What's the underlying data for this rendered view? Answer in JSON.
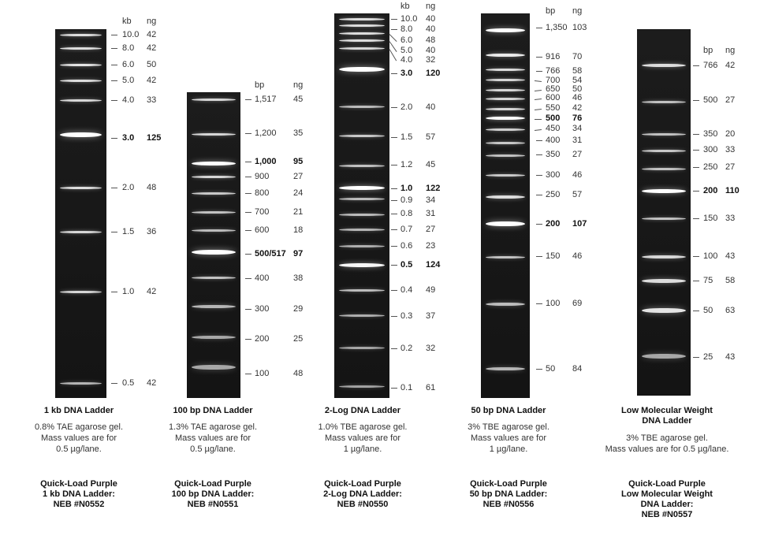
{
  "panels": [
    {
      "id": "1kb",
      "col_headers": [
        "kb",
        "ng"
      ],
      "title": "1 kb DNA Ladder",
      "description": [
        "0.8% TAE agarose gel.",
        "Mass values are for",
        "0.5 µg/lane."
      ],
      "quickload": [
        "Quick-Load Purple",
        "1 kb DNA Ladder:",
        "NEB #N0552"
      ],
      "bands": [
        {
          "size": "10.0",
          "ng": "42",
          "bold": false
        },
        {
          "size": "8.0",
          "ng": "42",
          "bold": false
        },
        {
          "size": "6.0",
          "ng": "50",
          "bold": false
        },
        {
          "size": "5.0",
          "ng": "42",
          "bold": false
        },
        {
          "size": "4.0",
          "ng": "33",
          "bold": false
        },
        {
          "size": "3.0",
          "ng": "125",
          "bold": true
        },
        {
          "size": "2.0",
          "ng": "48",
          "bold": false
        },
        {
          "size": "1.5",
          "ng": "36",
          "bold": false
        },
        {
          "size": "1.0",
          "ng": "42",
          "bold": false
        },
        {
          "size": "0.5",
          "ng": "42",
          "bold": false
        }
      ]
    },
    {
      "id": "100bp",
      "col_headers": [
        "bp",
        "ng"
      ],
      "title": "100 bp DNA Ladder",
      "description": [
        "1.3% TAE agarose gel.",
        "Mass values are for",
        "0.5 µg/lane."
      ],
      "quickload": [
        "Quick-Load Purple",
        "100 bp DNA Ladder:",
        "NEB #N0551"
      ],
      "bands": [
        {
          "size": "1,517",
          "ng": "45",
          "bold": false
        },
        {
          "size": "1,200",
          "ng": "35",
          "bold": false
        },
        {
          "size": "1,000",
          "ng": "95",
          "bold": true
        },
        {
          "size": "900",
          "ng": "27",
          "bold": false
        },
        {
          "size": "800",
          "ng": "24",
          "bold": false
        },
        {
          "size": "700",
          "ng": "21",
          "bold": false
        },
        {
          "size": "600",
          "ng": "18",
          "bold": false
        },
        {
          "size": "500/517",
          "ng": "97",
          "bold": true
        },
        {
          "size": "400",
          "ng": "38",
          "bold": false
        },
        {
          "size": "300",
          "ng": "29",
          "bold": false
        },
        {
          "size": "200",
          "ng": "25",
          "bold": false
        },
        {
          "size": "100",
          "ng": "48",
          "bold": false
        }
      ]
    },
    {
      "id": "2log",
      "col_headers": [
        "kb",
        "ng"
      ],
      "title": "2-Log DNA Ladder",
      "description": [
        "1.0% TBE agarose gel.",
        "Mass values are for",
        "1 µg/lane."
      ],
      "quickload": [
        "Quick-Load Purple",
        "2-Log DNA Ladder:",
        "NEB #N0550"
      ],
      "bands": [
        {
          "size": "10.0",
          "ng": "40",
          "bold": false
        },
        {
          "size": "8.0",
          "ng": "40",
          "bold": false
        },
        {
          "size": "6.0",
          "ng": "48",
          "bold": false
        },
        {
          "size": "5.0",
          "ng": "40",
          "bold": false
        },
        {
          "size": "4.0",
          "ng": "32",
          "bold": false
        },
        {
          "size": "3.0",
          "ng": "120",
          "bold": true
        },
        {
          "size": "2.0",
          "ng": "40",
          "bold": false
        },
        {
          "size": "1.5",
          "ng": "57",
          "bold": false
        },
        {
          "size": "1.2",
          "ng": "45",
          "bold": false
        },
        {
          "size": "1.0",
          "ng": "122",
          "bold": true
        },
        {
          "size": "0.9",
          "ng": "34",
          "bold": false
        },
        {
          "size": "0.8",
          "ng": "31",
          "bold": false
        },
        {
          "size": "0.7",
          "ng": "27",
          "bold": false
        },
        {
          "size": "0.6",
          "ng": "23",
          "bold": false
        },
        {
          "size": "0.5",
          "ng": "124",
          "bold": true
        },
        {
          "size": "0.4",
          "ng": "49",
          "bold": false
        },
        {
          "size": "0.3",
          "ng": "37",
          "bold": false
        },
        {
          "size": "0.2",
          "ng": "32",
          "bold": false
        },
        {
          "size": "0.1",
          "ng": "61",
          "bold": false
        }
      ]
    },
    {
      "id": "50bp",
      "col_headers": [
        "bp",
        "ng"
      ],
      "title": "50 bp DNA Ladder",
      "description": [
        "3% TBE agarose gel.",
        "Mass values are for",
        "1 µg/lane."
      ],
      "quickload": [
        "Quick-Load Purple",
        "50 bp DNA Ladder:",
        "NEB #N0556"
      ],
      "bands": [
        {
          "size": "1,350",
          "ng": "103",
          "bold": false
        },
        {
          "size": "916",
          "ng": "70",
          "bold": false
        },
        {
          "size": "766",
          "ng": "58",
          "bold": false
        },
        {
          "size": "700",
          "ng": "54",
          "bold": false
        },
        {
          "size": "650",
          "ng": "50",
          "bold": false
        },
        {
          "size": "600",
          "ng": "46",
          "bold": false
        },
        {
          "size": "550",
          "ng": "42",
          "bold": false
        },
        {
          "size": "500",
          "ng": "76",
          "bold": true
        },
        {
          "size": "450",
          "ng": "34",
          "bold": false
        },
        {
          "size": "400",
          "ng": "31",
          "bold": false
        },
        {
          "size": "350",
          "ng": "27",
          "bold": false
        },
        {
          "size": "300",
          "ng": "46",
          "bold": false
        },
        {
          "size": "250",
          "ng": "57",
          "bold": false
        },
        {
          "size": "200",
          "ng": "107",
          "bold": true
        },
        {
          "size": "150",
          "ng": "46",
          "bold": false
        },
        {
          "size": "100",
          "ng": "69",
          "bold": false
        },
        {
          "size": "50",
          "ng": "84",
          "bold": false
        }
      ]
    },
    {
      "id": "lmw",
      "col_headers": [
        "bp",
        "ng"
      ],
      "title": "Low Molecular Weight DNA Ladder",
      "description": [
        "3% TBE agarose gel.",
        "Mass values are for 0.5 µg/lane."
      ],
      "quickload": [
        "Quick-Load Purple",
        "Low Molecular Weight",
        "DNA Ladder:",
        "NEB #N0557"
      ],
      "bands": [
        {
          "size": "766",
          "ng": "42",
          "bold": false
        },
        {
          "size": "500",
          "ng": "27",
          "bold": false
        },
        {
          "size": "350",
          "ng": "20",
          "bold": false
        },
        {
          "size": "300",
          "ng": "33",
          "bold": false
        },
        {
          "size": "250",
          "ng": "27",
          "bold": false
        },
        {
          "size": "200",
          "ng": "110",
          "bold": true
        },
        {
          "size": "150",
          "ng": "33",
          "bold": false
        },
        {
          "size": "100",
          "ng": "43",
          "bold": false
        },
        {
          "size": "75",
          "ng": "58",
          "bold": false
        },
        {
          "size": "50",
          "ng": "63",
          "bold": false
        },
        {
          "size": "25",
          "ng": "43",
          "bold": false
        }
      ]
    }
  ]
}
